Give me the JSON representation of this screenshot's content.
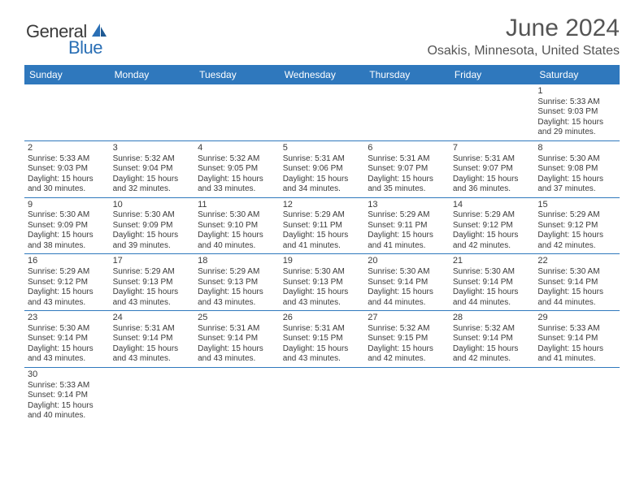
{
  "logo": {
    "text1": "General",
    "text2": "Blue",
    "color1": "#3a3a3a",
    "color2": "#2a6fb5"
  },
  "title": "June 2024",
  "location": "Osakis, Minnesota, United States",
  "colors": {
    "header_bg": "#2f78bd",
    "header_text": "#ffffff",
    "rule": "#2f78bd",
    "body_text": "#3a3a3a",
    "title_text": "#555555"
  },
  "typography": {
    "title_fontsize": 30,
    "location_fontsize": 16,
    "dayhead_fontsize": 12,
    "daynum_fontsize": 11,
    "cell_fontsize": 10
  },
  "day_headers": [
    "Sunday",
    "Monday",
    "Tuesday",
    "Wednesday",
    "Thursday",
    "Friday",
    "Saturday"
  ],
  "weeks": [
    [
      null,
      null,
      null,
      null,
      null,
      null,
      {
        "n": "1",
        "sr": "Sunrise: 5:33 AM",
        "ss": "Sunset: 9:03 PM",
        "d1": "Daylight: 15 hours",
        "d2": "and 29 minutes."
      }
    ],
    [
      {
        "n": "2",
        "sr": "Sunrise: 5:33 AM",
        "ss": "Sunset: 9:03 PM",
        "d1": "Daylight: 15 hours",
        "d2": "and 30 minutes."
      },
      {
        "n": "3",
        "sr": "Sunrise: 5:32 AM",
        "ss": "Sunset: 9:04 PM",
        "d1": "Daylight: 15 hours",
        "d2": "and 32 minutes."
      },
      {
        "n": "4",
        "sr": "Sunrise: 5:32 AM",
        "ss": "Sunset: 9:05 PM",
        "d1": "Daylight: 15 hours",
        "d2": "and 33 minutes."
      },
      {
        "n": "5",
        "sr": "Sunrise: 5:31 AM",
        "ss": "Sunset: 9:06 PM",
        "d1": "Daylight: 15 hours",
        "d2": "and 34 minutes."
      },
      {
        "n": "6",
        "sr": "Sunrise: 5:31 AM",
        "ss": "Sunset: 9:07 PM",
        "d1": "Daylight: 15 hours",
        "d2": "and 35 minutes."
      },
      {
        "n": "7",
        "sr": "Sunrise: 5:31 AM",
        "ss": "Sunset: 9:07 PM",
        "d1": "Daylight: 15 hours",
        "d2": "and 36 minutes."
      },
      {
        "n": "8",
        "sr": "Sunrise: 5:30 AM",
        "ss": "Sunset: 9:08 PM",
        "d1": "Daylight: 15 hours",
        "d2": "and 37 minutes."
      }
    ],
    [
      {
        "n": "9",
        "sr": "Sunrise: 5:30 AM",
        "ss": "Sunset: 9:09 PM",
        "d1": "Daylight: 15 hours",
        "d2": "and 38 minutes."
      },
      {
        "n": "10",
        "sr": "Sunrise: 5:30 AM",
        "ss": "Sunset: 9:09 PM",
        "d1": "Daylight: 15 hours",
        "d2": "and 39 minutes."
      },
      {
        "n": "11",
        "sr": "Sunrise: 5:30 AM",
        "ss": "Sunset: 9:10 PM",
        "d1": "Daylight: 15 hours",
        "d2": "and 40 minutes."
      },
      {
        "n": "12",
        "sr": "Sunrise: 5:29 AM",
        "ss": "Sunset: 9:11 PM",
        "d1": "Daylight: 15 hours",
        "d2": "and 41 minutes."
      },
      {
        "n": "13",
        "sr": "Sunrise: 5:29 AM",
        "ss": "Sunset: 9:11 PM",
        "d1": "Daylight: 15 hours",
        "d2": "and 41 minutes."
      },
      {
        "n": "14",
        "sr": "Sunrise: 5:29 AM",
        "ss": "Sunset: 9:12 PM",
        "d1": "Daylight: 15 hours",
        "d2": "and 42 minutes."
      },
      {
        "n": "15",
        "sr": "Sunrise: 5:29 AM",
        "ss": "Sunset: 9:12 PM",
        "d1": "Daylight: 15 hours",
        "d2": "and 42 minutes."
      }
    ],
    [
      {
        "n": "16",
        "sr": "Sunrise: 5:29 AM",
        "ss": "Sunset: 9:12 PM",
        "d1": "Daylight: 15 hours",
        "d2": "and 43 minutes."
      },
      {
        "n": "17",
        "sr": "Sunrise: 5:29 AM",
        "ss": "Sunset: 9:13 PM",
        "d1": "Daylight: 15 hours",
        "d2": "and 43 minutes."
      },
      {
        "n": "18",
        "sr": "Sunrise: 5:29 AM",
        "ss": "Sunset: 9:13 PM",
        "d1": "Daylight: 15 hours",
        "d2": "and 43 minutes."
      },
      {
        "n": "19",
        "sr": "Sunrise: 5:30 AM",
        "ss": "Sunset: 9:13 PM",
        "d1": "Daylight: 15 hours",
        "d2": "and 43 minutes."
      },
      {
        "n": "20",
        "sr": "Sunrise: 5:30 AM",
        "ss": "Sunset: 9:14 PM",
        "d1": "Daylight: 15 hours",
        "d2": "and 44 minutes."
      },
      {
        "n": "21",
        "sr": "Sunrise: 5:30 AM",
        "ss": "Sunset: 9:14 PM",
        "d1": "Daylight: 15 hours",
        "d2": "and 44 minutes."
      },
      {
        "n": "22",
        "sr": "Sunrise: 5:30 AM",
        "ss": "Sunset: 9:14 PM",
        "d1": "Daylight: 15 hours",
        "d2": "and 44 minutes."
      }
    ],
    [
      {
        "n": "23",
        "sr": "Sunrise: 5:30 AM",
        "ss": "Sunset: 9:14 PM",
        "d1": "Daylight: 15 hours",
        "d2": "and 43 minutes."
      },
      {
        "n": "24",
        "sr": "Sunrise: 5:31 AM",
        "ss": "Sunset: 9:14 PM",
        "d1": "Daylight: 15 hours",
        "d2": "and 43 minutes."
      },
      {
        "n": "25",
        "sr": "Sunrise: 5:31 AM",
        "ss": "Sunset: 9:14 PM",
        "d1": "Daylight: 15 hours",
        "d2": "and 43 minutes."
      },
      {
        "n": "26",
        "sr": "Sunrise: 5:31 AM",
        "ss": "Sunset: 9:15 PM",
        "d1": "Daylight: 15 hours",
        "d2": "and 43 minutes."
      },
      {
        "n": "27",
        "sr": "Sunrise: 5:32 AM",
        "ss": "Sunset: 9:15 PM",
        "d1": "Daylight: 15 hours",
        "d2": "and 42 minutes."
      },
      {
        "n": "28",
        "sr": "Sunrise: 5:32 AM",
        "ss": "Sunset: 9:14 PM",
        "d1": "Daylight: 15 hours",
        "d2": "and 42 minutes."
      },
      {
        "n": "29",
        "sr": "Sunrise: 5:33 AM",
        "ss": "Sunset: 9:14 PM",
        "d1": "Daylight: 15 hours",
        "d2": "and 41 minutes."
      }
    ],
    [
      {
        "n": "30",
        "sr": "Sunrise: 5:33 AM",
        "ss": "Sunset: 9:14 PM",
        "d1": "Daylight: 15 hours",
        "d2": "and 40 minutes."
      },
      null,
      null,
      null,
      null,
      null,
      null
    ]
  ]
}
